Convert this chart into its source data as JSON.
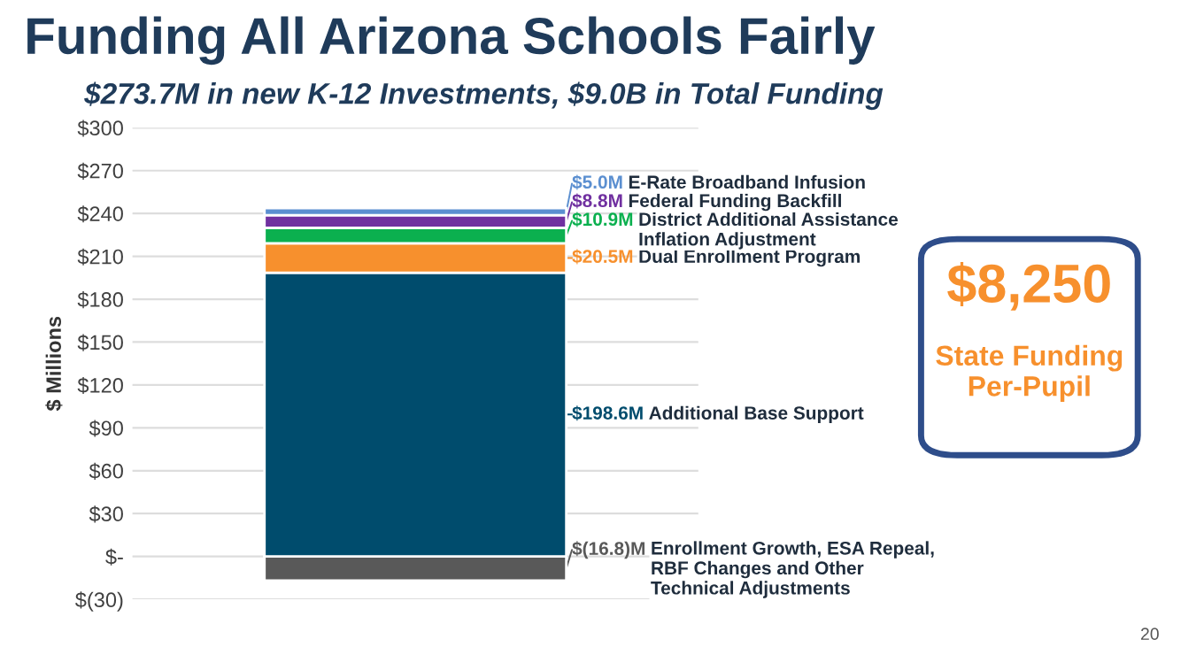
{
  "chart_data": {
    "type": "bar",
    "stacked": true,
    "title": "Funding All Arizona Schools Fairly",
    "subtitle": "$273.7M in new K-12 Investments, $9.0B in Total Funding",
    "ylabel": "$ Millions",
    "categories": [
      null
    ],
    "series": [
      {
        "name": "Enrollment Growth, ESA Repeal, RBF Changes and Other Technical Adjustments",
        "color": "#595959",
        "values": [
          -16.8
        ],
        "value_labels": [
          "$(16.8)M"
        ]
      },
      {
        "name": "Additional Base Support",
        "color": "#004c6d",
        "values": [
          198.6
        ],
        "value_labels": [
          "$198.6M"
        ]
      },
      {
        "name": "Dual Enrollment Program",
        "color": "#f7902d",
        "values": [
          20.5
        ],
        "value_labels": [
          "$20.5M"
        ]
      },
      {
        "name": "District Additional Assistance Inflation Adjustment",
        "color": "#0bb04f",
        "values": [
          10.9
        ],
        "value_labels": [
          "$10.9M"
        ]
      },
      {
        "name": "Federal Funding Backfill",
        "color": "#7030a0",
        "values": [
          8.8
        ],
        "value_labels": [
          "$8.8M"
        ]
      },
      {
        "name": "E-Rate Broadband Infusion",
        "color": "#5b8fd0",
        "values": [
          5.0
        ],
        "value_labels": [
          "$5.0M"
        ]
      }
    ],
    "ylim": [
      -30,
      300
    ],
    "yticks": [
      {
        "value": -30,
        "label": "$(30)"
      },
      {
        "value": 0,
        "label": "$-"
      },
      {
        "value": 30,
        "label": "$30"
      },
      {
        "value": 60,
        "label": "$60"
      },
      {
        "value": 90,
        "label": "$90"
      },
      {
        "value": 120,
        "label": "$120"
      },
      {
        "value": 150,
        "label": "$150"
      },
      {
        "value": 180,
        "label": "$180"
      },
      {
        "value": 210,
        "label": "$210"
      },
      {
        "value": 240,
        "label": "$240"
      },
      {
        "value": 270,
        "label": "$270"
      },
      {
        "value": 300,
        "label": "$300"
      }
    ],
    "grid": "y",
    "legend": false,
    "annotations": [
      "$8,250",
      "State Funding Per-Pupil",
      "20"
    ]
  }
}
